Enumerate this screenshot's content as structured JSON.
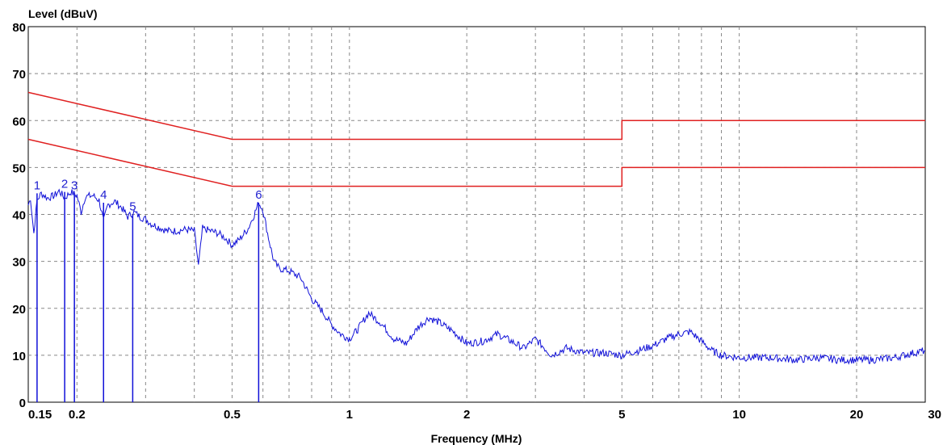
{
  "chart_data": {
    "type": "line",
    "title": "",
    "xlabel": "Frequency (MHz)",
    "ylabel": "Level (dBuV)",
    "x_scale": "log",
    "xlim": [
      0.15,
      30
    ],
    "ylim": [
      0,
      80
    ],
    "grid": true,
    "x_ticks": [
      {
        "value": 0.15,
        "label": "0.15"
      },
      {
        "value": 0.2,
        "label": "0.2"
      },
      {
        "value": 0.5,
        "label": "0.5"
      },
      {
        "value": 1,
        "label": "1"
      },
      {
        "value": 2,
        "label": "2"
      },
      {
        "value": 5,
        "label": "5"
      },
      {
        "value": 10,
        "label": "10"
      },
      {
        "value": 20,
        "label": "20"
      },
      {
        "value": 30,
        "label": "30"
      }
    ],
    "x_gridlines": [
      0.2,
      0.3,
      0.4,
      0.5,
      0.6,
      0.7,
      0.8,
      0.9,
      1,
      2,
      3,
      4,
      5,
      6,
      7,
      8,
      9,
      10,
      20,
      30
    ],
    "y_ticks": [
      0,
      10,
      20,
      30,
      40,
      50,
      60,
      70,
      80
    ],
    "colors": {
      "limit": "#e02020",
      "trace": "#1010d8",
      "marker_label": "#2020d0",
      "grid": "#888888"
    },
    "series": [
      {
        "kind": "limit",
        "color": "#e02020",
        "points": [
          [
            0.15,
            66
          ],
          [
            0.5,
            56
          ],
          [
            5,
            56
          ],
          [
            5,
            60
          ],
          [
            30,
            60
          ]
        ]
      },
      {
        "kind": "limit",
        "color": "#e02020",
        "points": [
          [
            0.15,
            56
          ],
          [
            0.5,
            46
          ],
          [
            5,
            46
          ],
          [
            5,
            50
          ],
          [
            30,
            50
          ]
        ]
      },
      {
        "kind": "measurement",
        "color": "#1010d8",
        "points": [
          [
            0.15,
            42
          ],
          [
            0.152,
            43.5
          ],
          [
            0.155,
            36
          ],
          [
            0.158,
            43
          ],
          [
            0.162,
            44.5
          ],
          [
            0.168,
            43.5
          ],
          [
            0.175,
            44
          ],
          [
            0.18,
            45
          ],
          [
            0.186,
            43.5
          ],
          [
            0.193,
            44.8
          ],
          [
            0.2,
            44
          ],
          [
            0.205,
            40.5
          ],
          [
            0.21,
            43.8
          ],
          [
            0.22,
            44
          ],
          [
            0.228,
            43
          ],
          [
            0.234,
            38.5
          ],
          [
            0.24,
            42
          ],
          [
            0.25,
            42.8
          ],
          [
            0.26,
            41.5
          ],
          [
            0.27,
            39.5
          ],
          [
            0.28,
            40.5
          ],
          [
            0.29,
            39.5
          ],
          [
            0.3,
            39
          ],
          [
            0.31,
            38
          ],
          [
            0.32,
            37.5
          ],
          [
            0.34,
            36.5
          ],
          [
            0.36,
            36.5
          ],
          [
            0.38,
            36.8
          ],
          [
            0.4,
            36.5
          ],
          [
            0.41,
            29
          ],
          [
            0.42,
            37
          ],
          [
            0.44,
            36.5
          ],
          [
            0.46,
            36
          ],
          [
            0.48,
            35
          ],
          [
            0.5,
            33.5
          ],
          [
            0.52,
            34.5
          ],
          [
            0.55,
            37
          ],
          [
            0.57,
            40
          ],
          [
            0.585,
            42.5
          ],
          [
            0.6,
            41
          ],
          [
            0.62,
            35
          ],
          [
            0.64,
            30
          ],
          [
            0.66,
            28.5
          ],
          [
            0.7,
            28
          ],
          [
            0.75,
            26.5
          ],
          [
            0.8,
            22
          ],
          [
            0.85,
            19.5
          ],
          [
            0.9,
            16.5
          ],
          [
            0.95,
            14.5
          ],
          [
            1.0,
            13.5
          ],
          [
            1.05,
            15.5
          ],
          [
            1.12,
            19
          ],
          [
            1.2,
            17
          ],
          [
            1.3,
            13.5
          ],
          [
            1.4,
            12.5
          ],
          [
            1.5,
            16
          ],
          [
            1.6,
            18
          ],
          [
            1.7,
            17
          ],
          [
            1.85,
            15
          ],
          [
            2.0,
            12.5
          ],
          [
            2.2,
            13
          ],
          [
            2.4,
            14.5
          ],
          [
            2.6,
            13
          ],
          [
            2.8,
            11.5
          ],
          [
            3.0,
            13.5
          ],
          [
            3.3,
            10
          ],
          [
            3.6,
            11.5
          ],
          [
            4.0,
            10.5
          ],
          [
            4.5,
            10.5
          ],
          [
            5.0,
            10
          ],
          [
            5.5,
            11
          ],
          [
            6.0,
            12
          ],
          [
            6.5,
            13.5
          ],
          [
            7.0,
            14.5
          ],
          [
            7.5,
            15
          ],
          [
            8.0,
            13
          ],
          [
            8.5,
            11
          ],
          [
            9.0,
            10
          ],
          [
            10,
            9.5
          ],
          [
            12,
            9.5
          ],
          [
            14,
            9
          ],
          [
            16,
            9.5
          ],
          [
            18,
            9
          ],
          [
            20,
            9
          ],
          [
            22,
            9
          ],
          [
            25,
            9.5
          ],
          [
            28,
            10.5
          ],
          [
            30,
            11
          ]
        ]
      }
    ],
    "markers": [
      {
        "label": "1",
        "freq": 0.158,
        "level": 44.5
      },
      {
        "label": "2",
        "freq": 0.186,
        "level": 44.8
      },
      {
        "label": "3",
        "freq": 0.197,
        "level": 44.5
      },
      {
        "label": "4",
        "freq": 0.234,
        "level": 42.5
      },
      {
        "label": "5",
        "freq": 0.278,
        "level": 40.0
      },
      {
        "label": "6",
        "freq": 0.585,
        "level": 42.5
      }
    ]
  }
}
